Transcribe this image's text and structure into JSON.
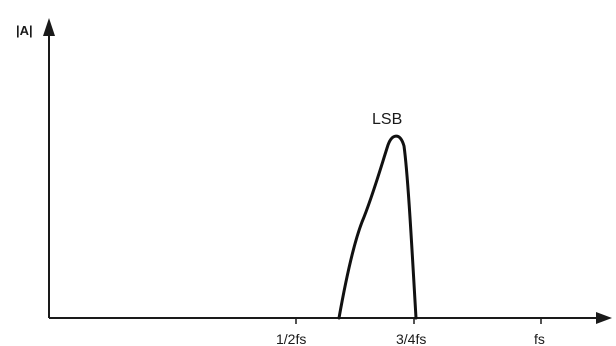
{
  "diagram": {
    "y_axis_label": "|A|",
    "peak_label": "LSB",
    "x_ticks": [
      {
        "id": "half-fs",
        "label": "1/2fs"
      },
      {
        "id": "three-quarter-fs",
        "label": "3/4fs"
      },
      {
        "id": "fs",
        "label": "fs"
      }
    ]
  },
  "colors": {
    "ink": "#1a1a1a",
    "background": "#ffffff"
  }
}
